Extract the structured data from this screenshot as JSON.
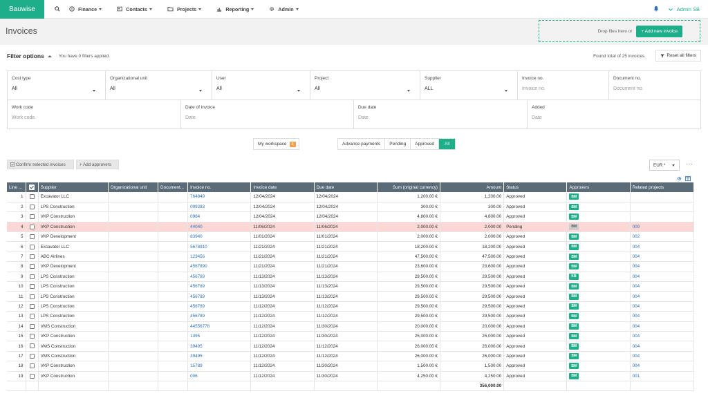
{
  "app": {
    "brand": "Bauwise"
  },
  "nav": [
    {
      "label": "Finance",
      "icon": "finance-icon"
    },
    {
      "label": "Contacts",
      "icon": "contacts-icon"
    },
    {
      "label": "Projects",
      "icon": "folder-icon"
    },
    {
      "label": "Reporting",
      "icon": "chart-icon"
    },
    {
      "label": "Admin",
      "icon": "gear-icon"
    }
  ],
  "user": {
    "name": "Admin SB"
  },
  "page": {
    "title": "Invoices"
  },
  "dropzone": {
    "text": "Drop files here or",
    "button": "+ Add new invoice"
  },
  "filter": {
    "title": "Filter options",
    "applied": "You have 0 filters applied.",
    "found": "Found total of 25 invoices.",
    "reset": "Reset all filters",
    "row1": [
      {
        "label": "Cost type",
        "value": "All",
        "type": "select"
      },
      {
        "label": "Organizational unit",
        "value": "All",
        "type": "select"
      },
      {
        "label": "User",
        "value": "All",
        "type": "select"
      },
      {
        "label": "Project",
        "value": "All",
        "type": "select"
      },
      {
        "label": "Supplier",
        "value": "ALL",
        "type": "select"
      },
      {
        "label": "Invoice no.",
        "placeholder": "Invoice no.",
        "type": "input"
      },
      {
        "label": "Document no.",
        "placeholder": "Document no.",
        "type": "input"
      }
    ],
    "row2": [
      {
        "label": "Work code",
        "placeholder": "Work code"
      },
      {
        "label": "Date of invoice",
        "placeholder": "Date"
      },
      {
        "label": "Due date",
        "placeholder": "Date"
      },
      {
        "label": "Added",
        "placeholder": "Date"
      }
    ]
  },
  "workspace": {
    "label": "My workspace",
    "count": "6"
  },
  "tabs": [
    "Advance payments",
    "Pending",
    "Approved",
    "All"
  ],
  "actions": {
    "confirm": "Confirm selected invoices",
    "approvers": "+ Add approvers"
  },
  "currency": {
    "value": "EUR *"
  },
  "table": {
    "headers": [
      "Line ...",
      "",
      "Supplier",
      "Organizational unit",
      "Document...",
      "Invoice no.",
      "Invoice date",
      "Due date",
      "Sum (original currency)",
      "Amount",
      "Status",
      "Approvers",
      "Related projects"
    ],
    "rows": [
      {
        "line": "1",
        "supplier": "Excavator LLC",
        "org": "",
        "doc": "",
        "invoice": "764849",
        "date": "12/04/2024",
        "due": "12/04/2024",
        "sum": "1,200.00 €",
        "amount": "1,200.00",
        "status": "Approved",
        "approver": "BM",
        "project": ""
      },
      {
        "line": "2",
        "supplier": "LPS Construction",
        "org": "",
        "doc": "",
        "invoice": "009283",
        "date": "12/04/2024",
        "due": "12/04/2024",
        "sum": "300.00 €",
        "amount": "300.00",
        "status": "Approved",
        "approver": "BM",
        "project": ""
      },
      {
        "line": "3",
        "supplier": "VKP Construction",
        "org": "",
        "doc": "",
        "invoice": "0984",
        "date": "12/04/2024",
        "due": "12/04/2024",
        "sum": "4,800.00 €",
        "amount": "4,800.00",
        "status": "Approved",
        "approver": "BM",
        "project": ""
      },
      {
        "line": "4",
        "supplier": "VKP Construction",
        "org": "",
        "doc": "",
        "invoice": "44040",
        "date": "11/06/2024",
        "due": "11/06/2024",
        "sum": "2,000.00 €",
        "amount": "2,000.00",
        "status": "Pending",
        "approver": "BM",
        "project": "009",
        "highlight": true
      },
      {
        "line": "5",
        "supplier": "VKP Development",
        "org": "",
        "doc": "",
        "invoice": "83940",
        "date": "11/01/2024",
        "due": "11/01/2024",
        "sum": "2,000.00 €",
        "amount": "2,000.00",
        "status": "Approved",
        "approver": "BM",
        "project": "002"
      },
      {
        "line": "6",
        "supplier": "Excavator LLC",
        "org": "",
        "doc": "",
        "invoice": "5678910",
        "date": "11/21/2024",
        "due": "11/21/2024",
        "sum": "18,200.00 €",
        "amount": "18,200.00",
        "status": "Approved",
        "approver": "BM",
        "project": "004"
      },
      {
        "line": "7",
        "supplier": "ABC Airlines",
        "org": "",
        "doc": "",
        "invoice": "123456",
        "date": "11/21/2024",
        "due": "11/21/2024",
        "sum": "47,500.00 €",
        "amount": "47,500.00",
        "status": "Approved",
        "approver": "BM",
        "project": "004"
      },
      {
        "line": "8",
        "supplier": "VKP Development",
        "org": "",
        "doc": "",
        "invoice": "4567890",
        "date": "11/21/2024",
        "due": "11/21/2024",
        "sum": "23,600.00 €",
        "amount": "23,600.00",
        "status": "Approved",
        "approver": "BM",
        "project": "004"
      },
      {
        "line": "9",
        "supplier": "LPS Construction",
        "org": "",
        "doc": "",
        "invoice": "456789",
        "date": "11/13/2024",
        "due": "11/13/2024",
        "sum": "29,500.00 €",
        "amount": "29,500.00",
        "status": "Approved",
        "approver": "KB",
        "project": "004"
      },
      {
        "line": "10",
        "supplier": "LPS Construction",
        "org": "",
        "doc": "",
        "invoice": "456789",
        "date": "11/13/2024",
        "due": "11/13/2024",
        "sum": "29,500.00 €",
        "amount": "29,500.00",
        "status": "Approved",
        "approver": "BM",
        "project": "004"
      },
      {
        "line": "11",
        "supplier": "LPS Construction",
        "org": "",
        "doc": "",
        "invoice": "456789",
        "date": "11/13/2024",
        "due": "11/13/2024",
        "sum": "29,500.00 €",
        "amount": "29,500.00",
        "status": "Approved",
        "approver": "BM",
        "project": "004"
      },
      {
        "line": "12",
        "supplier": "LPS Construction",
        "org": "",
        "doc": "",
        "invoice": "456789",
        "date": "11/12/2024",
        "due": "11/12/2024",
        "sum": "29,500.00 €",
        "amount": "29,500.00",
        "status": "Approved",
        "approver": "BM",
        "project": "004"
      },
      {
        "line": "13",
        "supplier": "LPS Construction",
        "org": "",
        "doc": "",
        "invoice": "456789",
        "date": "11/12/2024",
        "due": "11/12/2024",
        "sum": "29,500.00 €",
        "amount": "29,500.00",
        "status": "Approved",
        "approver": "BM",
        "project": "004"
      },
      {
        "line": "14",
        "supplier": "VMS Construction",
        "org": "",
        "doc": "",
        "invoice": "44556778",
        "date": "11/12/2024",
        "due": "11/30/2024",
        "sum": "20,000.00 €",
        "amount": "20,000.00",
        "status": "Approved",
        "approver": "BM",
        "project": "004"
      },
      {
        "line": "15",
        "supplier": "VKP Construction",
        "org": "",
        "doc": "",
        "invoice": "1395",
        "date": "11/12/2024",
        "due": "11/30/2024",
        "sum": "25,000.00 €",
        "amount": "25,000.00",
        "status": "Approved",
        "approver": "BM",
        "project": "004"
      },
      {
        "line": "16",
        "supplier": "VMS Construction",
        "org": "",
        "doc": "",
        "invoice": "39495",
        "date": "11/12/2024",
        "due": "11/12/2024",
        "sum": "26,000.00 €",
        "amount": "26,000.00",
        "status": "Approved",
        "approver": "BM",
        "project": "004"
      },
      {
        "line": "17",
        "supplier": "VMS Construction",
        "org": "",
        "doc": "",
        "invoice": "39495",
        "date": "11/12/2024",
        "due": "11/12/2024",
        "sum": "26,000.00 €",
        "amount": "26,000.00",
        "status": "Approved",
        "approver": "BM",
        "project": "004"
      },
      {
        "line": "18",
        "supplier": "VKP Construction",
        "org": "",
        "doc": "",
        "invoice": "15789",
        "date": "11/12/2024",
        "due": "11/30/2024",
        "sum": "1,500.00 €",
        "amount": "1,500.00",
        "status": "Approved",
        "approver": "BM",
        "project": "004"
      },
      {
        "line": "19",
        "supplier": "VKP Construction",
        "org": "",
        "doc": "",
        "invoice": "006",
        "date": "11/12/2024",
        "due": "11/30/2024",
        "sum": "4,250.00 €",
        "amount": "4,250.00",
        "status": "Approved",
        "approver": "BM",
        "project": "001"
      }
    ],
    "total": "356,000.00"
  },
  "colors": {
    "accent": "#1fae8a",
    "header": "#5b6b77",
    "link": "#2a6fba",
    "highlight": "#fbd7d5",
    "badge": "#f0a050"
  }
}
